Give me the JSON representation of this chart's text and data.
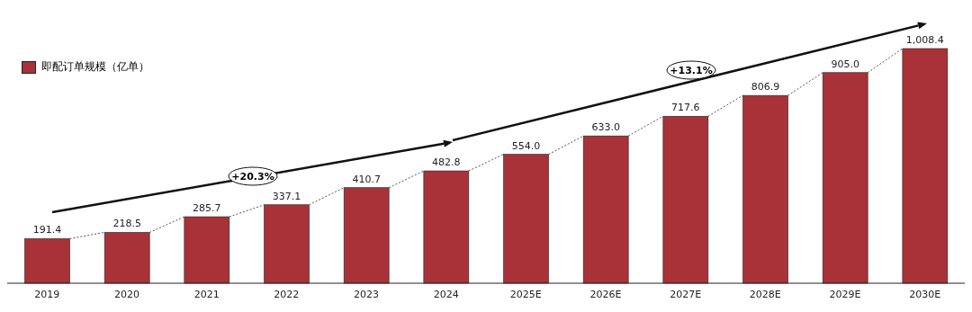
{
  "chart_data": {
    "type": "bar",
    "categories": [
      "2019",
      "2020",
      "2021",
      "2022",
      "2023",
      "2024",
      "2025E",
      "2026E",
      "2027E",
      "2028E",
      "2029E",
      "2030E"
    ],
    "series": [
      {
        "name": "即配订单规模（亿单）",
        "color": "#a83238",
        "values": [
          191.4,
          218.5,
          285.7,
          337.1,
          410.7,
          482.8,
          554.0,
          633.0,
          717.6,
          806.9,
          905.0,
          1008.4
        ],
        "value_labels": [
          "191.4",
          "218.5",
          "285.7",
          "337.1",
          "410.7",
          "482.8",
          "554.0",
          "633.0",
          "717.6",
          "806.9",
          "905.0",
          "1,008.4"
        ]
      }
    ],
    "annotations": [
      "+20.3%",
      "+13.1%"
    ],
    "legend": "top left"
  }
}
